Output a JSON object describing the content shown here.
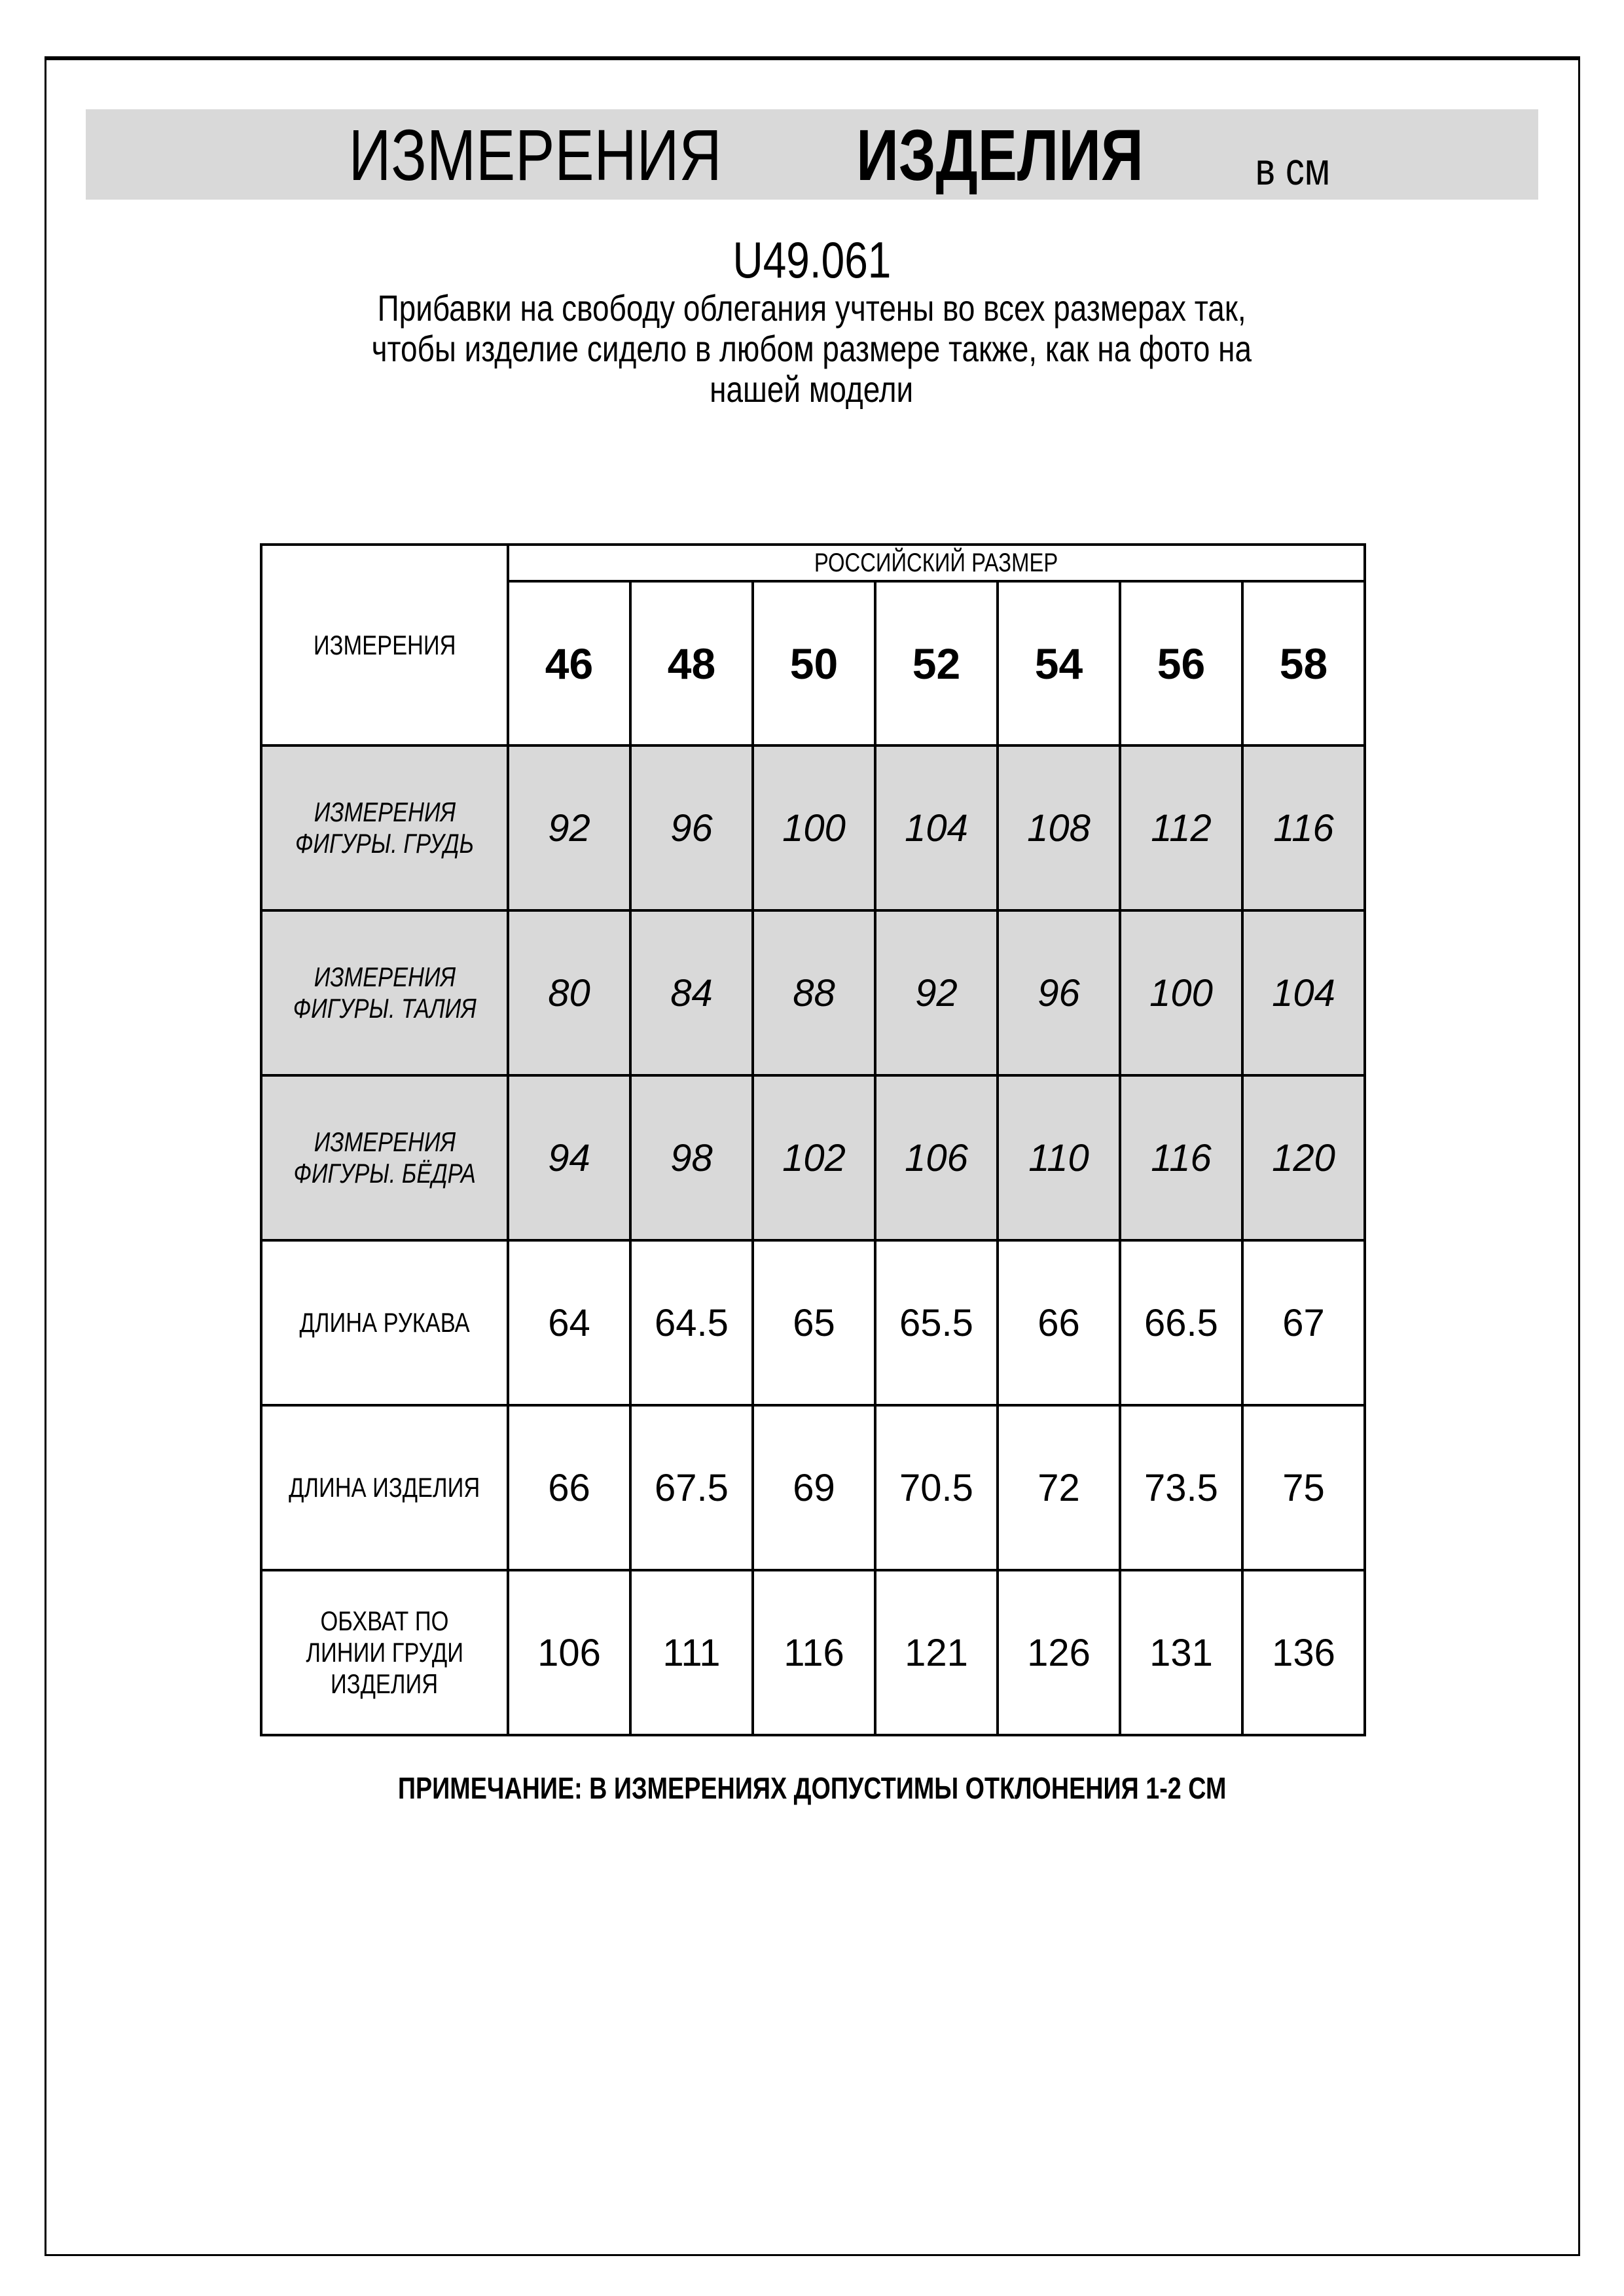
{
  "title": {
    "part1": "ИЗМЕРЕНИЯ",
    "part2": "ИЗДЕЛИЯ",
    "unit": "в см"
  },
  "article": "U49.061",
  "description": [
    "Прибавки на свободу облегания учтены во всех размерах так,",
    "чтобы изделие сидело в любом размере также, как на фото на",
    "нашей модели"
  ],
  "table": {
    "corner_label": "ИЗМЕРЕНИЯ",
    "group_header": "РОССИЙСКИЙ РАЗМЕР",
    "sizes": [
      "46",
      "48",
      "50",
      "52",
      "54",
      "56",
      "58"
    ],
    "rows": [
      {
        "label": [
          "ИЗМЕРЕНИЯ",
          "ФИГУРЫ. ГРУДЬ"
        ],
        "values": [
          "92",
          "96",
          "100",
          "104",
          "108",
          "112",
          "116"
        ],
        "shaded": true
      },
      {
        "label": [
          "ИЗМЕРЕНИЯ",
          "ФИГУРЫ. ТАЛИЯ"
        ],
        "values": [
          "80",
          "84",
          "88",
          "92",
          "96",
          "100",
          "104"
        ],
        "shaded": true
      },
      {
        "label": [
          "ИЗМЕРЕНИЯ",
          "ФИГУРЫ. БЁДРА"
        ],
        "values": [
          "94",
          "98",
          "102",
          "106",
          "110",
          "116",
          "120"
        ],
        "shaded": true
      },
      {
        "label": [
          "ДЛИНА РУКАВА"
        ],
        "values": [
          "64",
          "64.5",
          "65",
          "65.5",
          "66",
          "66.5",
          "67"
        ],
        "shaded": false
      },
      {
        "label": [
          "ДЛИНА ИЗДЕЛИЯ"
        ],
        "values": [
          "66",
          "67.5",
          "69",
          "70.5",
          "72",
          "73.5",
          "75"
        ],
        "shaded": false
      },
      {
        "label": [
          "ОБХВАТ ПО",
          "ЛИНИИ ГРУДИ",
          "ИЗДЕЛИЯ"
        ],
        "values": [
          "106",
          "111",
          "116",
          "121",
          "126",
          "131",
          "136"
        ],
        "shaded": false
      }
    ]
  },
  "note": "ПРИМЕЧАНИЕ: В ИЗМЕРЕНИЯХ ДОПУСТИМЫ ОТКЛОНЕНИЯ 1-2 СМ",
  "colors": {
    "band": "#d9d9d9",
    "shaded_row": "#d9d9d9"
  }
}
